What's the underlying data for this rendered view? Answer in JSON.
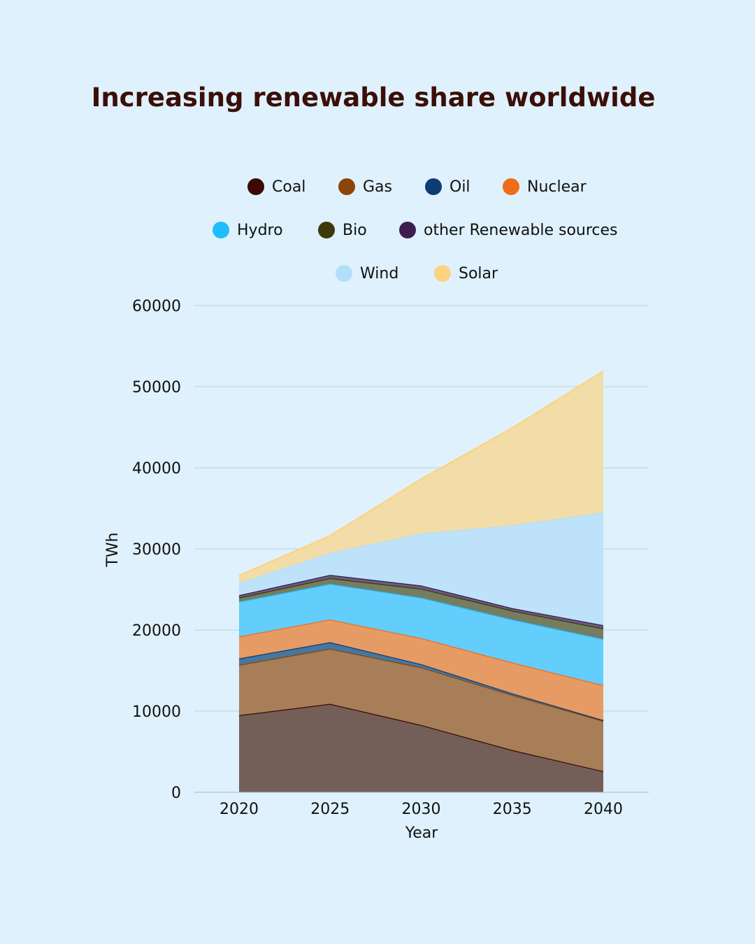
{
  "chart_data": {
    "type": "area",
    "stacked": true,
    "title": "Increasing renewable share worldwide",
    "xlabel": "Year",
    "ylabel": "TWh",
    "x": [
      2020,
      2025,
      2030,
      2035,
      2040
    ],
    "ylim": [
      0,
      60000
    ],
    "yticks": [
      0,
      10000,
      20000,
      30000,
      40000,
      50000,
      60000
    ],
    "grid": true,
    "legend_position": "top",
    "series": [
      {
        "name": "Coal",
        "values": [
          9500,
          10900,
          8300,
          5200,
          2600
        ],
        "color": "#3b0a05",
        "fill": "#735e58"
      },
      {
        "name": "Gas",
        "values": [
          6200,
          6800,
          7100,
          6800,
          6200
        ],
        "color": "#8b4508",
        "fill": "#a77e58"
      },
      {
        "name": "Oil",
        "values": [
          800,
          800,
          400,
          200,
          100
        ],
        "color": "#0d3c74",
        "fill": "#47769f"
      },
      {
        "name": "Nuclear",
        "values": [
          2700,
          2800,
          3200,
          3800,
          4300
        ],
        "color": "#ee6d18",
        "fill": "#e79b64"
      },
      {
        "name": "Hydro",
        "values": [
          4300,
          4400,
          5000,
          5300,
          5700
        ],
        "color": "#1fbdfc",
        "fill": "#63cdfb"
      },
      {
        "name": "Bio",
        "values": [
          500,
          700,
          1100,
          1100,
          1300
        ],
        "color": "#3b3a08",
        "fill": "#767c5f"
      },
      {
        "name": "other Renewable sources",
        "values": [
          300,
          400,
          400,
          300,
          400
        ],
        "color": "#3d1d4e",
        "fill": "#6a5c7d"
      },
      {
        "name": "Wind",
        "values": [
          1500,
          2700,
          6400,
          10200,
          13900
        ],
        "color": "#b2dffa",
        "fill": "#bfe2fb"
      },
      {
        "name": "Solar",
        "values": [
          900,
          2100,
          6700,
          12000,
          17400
        ],
        "color": "#fdd383",
        "fill": "#f2dda8"
      }
    ]
  }
}
